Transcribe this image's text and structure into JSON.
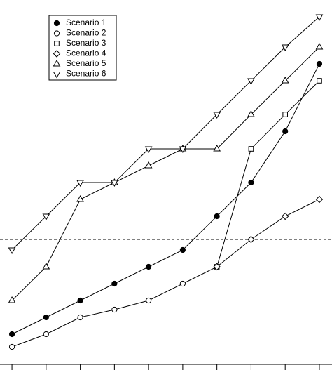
{
  "chart_data": {
    "type": "line",
    "x": [
      1,
      2,
      3,
      4,
      5,
      6,
      7,
      8,
      9,
      10
    ],
    "xlim": [
      0.65,
      10.37
    ],
    "xticks": [
      1,
      2,
      3,
      4,
      5,
      6,
      7,
      8,
      9,
      10
    ],
    "ylim": [
      0,
      527
    ],
    "hline": 186,
    "legend": "upper left",
    "series": [
      {
        "name": "Scenario 1",
        "color": "#000000",
        "marker": "filled-circle",
        "values": [
          51,
          75,
          99,
          123,
          147,
          171,
          219,
          267,
          340,
          436
        ]
      },
      {
        "name": "Scenario 2",
        "color": "#000000",
        "marker": "circle",
        "values": [
          33,
          51,
          75,
          86,
          99,
          123,
          147,
          null,
          null,
          null
        ]
      },
      {
        "name": "Scenario 3",
        "color": "#000000",
        "marker": "square",
        "values": [
          null,
          null,
          null,
          null,
          null,
          null,
          147,
          315,
          364,
          412
        ]
      },
      {
        "name": "Scenario 4",
        "color": "#000000",
        "marker": "diamond",
        "values": [
          null,
          null,
          null,
          null,
          null,
          null,
          147,
          186,
          219,
          243
        ]
      },
      {
        "name": "Scenario 5",
        "color": "#000000",
        "marker": "triangle-up",
        "values": [
          99,
          147,
          243,
          267,
          291,
          315,
          315,
          364,
          412,
          460
        ]
      },
      {
        "name": "Scenario 6",
        "color": "#000000",
        "marker": "triangle-down",
        "values": [
          171,
          219,
          267,
          267,
          315,
          315,
          364,
          412,
          460,
          503
        ]
      }
    ]
  }
}
